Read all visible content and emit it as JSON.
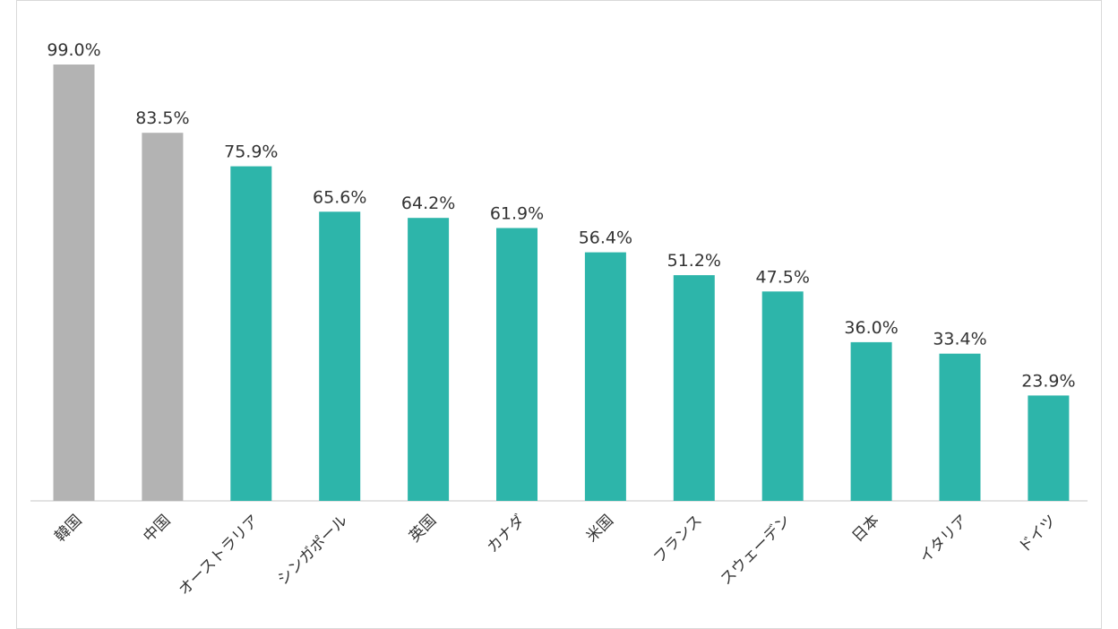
{
  "chart_data": {
    "type": "bar",
    "categories": [
      "韓国",
      "中国",
      "オーストラリア",
      "シンガポール",
      "英国",
      "カナダ",
      "米国",
      "フランス",
      "スウェーデン",
      "日本",
      "イタリア",
      "ドイツ"
    ],
    "values": [
      99.0,
      83.5,
      75.9,
      65.6,
      64.2,
      61.9,
      56.4,
      51.2,
      47.5,
      36.0,
      33.4,
      23.9
    ],
    "value_labels": [
      "99.0%",
      "83.5%",
      "75.9%",
      "65.6%",
      "64.2%",
      "61.9%",
      "56.4%",
      "51.2%",
      "47.5%",
      "36.0%",
      "33.4%",
      "23.9%"
    ],
    "colors": [
      "#b3b3b3",
      "#b3b3b3",
      "#2db5aa",
      "#2db5aa",
      "#2db5aa",
      "#2db5aa",
      "#2db5aa",
      "#2db5aa",
      "#2db5aa",
      "#2db5aa",
      "#2db5aa",
      "#2db5aa"
    ],
    "ylim": [
      0,
      100
    ],
    "grid": false,
    "title": "",
    "xlabel": "",
    "ylabel": ""
  },
  "colors": {
    "highlight": "#2db5aa",
    "muted": "#b3b3b3",
    "axis": "#d9d9d9",
    "text": "#333333"
  }
}
